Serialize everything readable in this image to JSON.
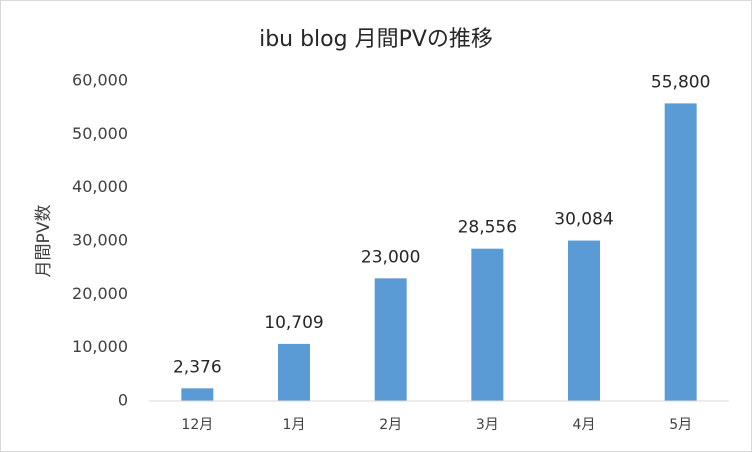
{
  "chart_data": {
    "type": "bar",
    "title": "ibu blog 月間PVの推移",
    "y_label": "月間PV数",
    "categories": [
      "12月",
      "1月",
      "2月",
      "3月",
      "4月",
      "5月"
    ],
    "values": [
      2376,
      10709,
      23000,
      28556,
      30084,
      55800
    ],
    "value_labels": [
      "2,376",
      "10,709",
      "23,000",
      "28,556",
      "30,084",
      "55,800"
    ],
    "color": "#5b9bd5",
    "ylim": [
      0,
      60000
    ],
    "yticks": [
      0,
      {
        "value": 10000,
        "label": "10,000"
      },
      {
        "value": 20000,
        "label": "20,000"
      },
      {
        "value": 30000,
        "label": "30,000"
      },
      {
        "value": 40000,
        "label": "40,000"
      },
      {
        "value": 50000,
        "label": "50,000"
      },
      {
        "value": 60000,
        "label": "60,000"
      }
    ],
    "grid": false
  }
}
